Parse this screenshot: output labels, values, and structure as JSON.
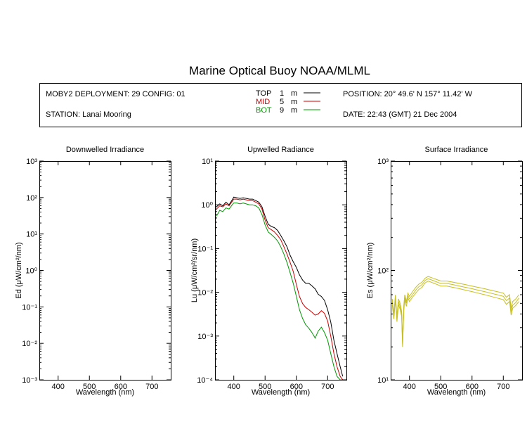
{
  "title": "Marine Optical Buoy NOAA/MLML",
  "info": {
    "deployment": "MOBY2 DEPLOYMENT: 29 CONFIG: 01",
    "station": "STATION: Lanai Mooring",
    "position": "POSITION: 20° 49.6' N   157° 11.42' W",
    "date": "DATE: 22:43 (GMT) 21 Dec 2004",
    "depths": [
      {
        "label": "TOP",
        "value": "1",
        "unit": "m",
        "color": "#000000"
      },
      {
        "label": "MID",
        "value": "5",
        "unit": "m",
        "color": "#cc0000"
      },
      {
        "label": "BOT",
        "value": "9",
        "unit": "m",
        "color": "#009900"
      }
    ]
  },
  "chart_data": [
    {
      "type": "line",
      "title": "Downwelled Irradiance",
      "xlabel": "Wavelength (nm)",
      "ylabel": "Ed  (μW/cm²/nm)",
      "yscale": "log",
      "xlim": [
        340,
        760
      ],
      "ylim": [
        0.001,
        1000
      ],
      "xticks": [
        "400",
        "500",
        "600",
        "700"
      ],
      "yticks": [
        "10⁻³",
        "10⁻²",
        "10⁻¹",
        "10⁰",
        "10¹",
        "10²",
        "10³"
      ],
      "series": []
    },
    {
      "type": "line",
      "title": "Upwelled Radiance",
      "xlabel": "Wavelength (nm)",
      "ylabel": "Lu  (μW/cm²/sr/nm)",
      "yscale": "log",
      "xlim": [
        340,
        760
      ],
      "ylim": [
        0.0001,
        10
      ],
      "xticks": [
        "400",
        "500",
        "600",
        "700"
      ],
      "yticks": [
        "10⁻⁴",
        "10⁻³",
        "10⁻²",
        "10⁻¹",
        "10⁰",
        "10¹"
      ],
      "series": [
        {
          "name": "TOP",
          "color": "#000000",
          "x": [
            345,
            355,
            365,
            375,
            385,
            395,
            400,
            410,
            420,
            430,
            440,
            450,
            460,
            470,
            480,
            490,
            500,
            510,
            520,
            530,
            540,
            550,
            560,
            570,
            580,
            590,
            600,
            610,
            620,
            630,
            640,
            650,
            660,
            670,
            680,
            690,
            700,
            710,
            720,
            730,
            740,
            748
          ],
          "y": [
            0.9,
            1.05,
            0.95,
            1.15,
            1.0,
            1.3,
            1.5,
            1.45,
            1.4,
            1.45,
            1.4,
            1.35,
            1.35,
            1.25,
            1.15,
            0.9,
            0.55,
            0.36,
            0.32,
            0.3,
            0.26,
            0.2,
            0.15,
            0.11,
            0.07,
            0.05,
            0.037,
            0.025,
            0.019,
            0.016,
            0.016,
            0.014,
            0.012,
            0.009,
            0.008,
            0.0065,
            0.004,
            0.0021,
            0.0008,
            0.0004,
            0.0002,
            0.00012
          ]
        },
        {
          "name": "MID",
          "color": "#cc0000",
          "x": [
            345,
            355,
            365,
            375,
            385,
            395,
            400,
            410,
            420,
            430,
            440,
            450,
            460,
            470,
            480,
            490,
            500,
            510,
            520,
            530,
            540,
            550,
            560,
            570,
            580,
            590,
            600,
            610,
            620,
            630,
            640,
            650,
            660,
            670,
            680,
            690,
            700,
            710,
            720,
            730,
            740,
            748
          ],
          "y": [
            0.8,
            0.95,
            0.9,
            1.05,
            0.95,
            1.2,
            1.35,
            1.35,
            1.3,
            1.35,
            1.3,
            1.25,
            1.25,
            1.15,
            1.05,
            0.8,
            0.45,
            0.3,
            0.27,
            0.24,
            0.2,
            0.16,
            0.11,
            0.075,
            0.048,
            0.03,
            0.015,
            0.008,
            0.0055,
            0.0045,
            0.004,
            0.0035,
            0.003,
            0.0032,
            0.0038,
            0.0033,
            0.0022,
            0.001,
            0.0004,
            0.0002,
            0.00012,
            0.0001
          ]
        },
        {
          "name": "BOT",
          "color": "#009900",
          "x": [
            345,
            355,
            365,
            375,
            385,
            395,
            400,
            410,
            420,
            430,
            440,
            450,
            460,
            470,
            480,
            490,
            500,
            510,
            520,
            530,
            540,
            550,
            560,
            570,
            580,
            590,
            600,
            610,
            620,
            630,
            640,
            650,
            660,
            670,
            680,
            690,
            700,
            710,
            720,
            730,
            740,
            748
          ],
          "y": [
            0.55,
            0.75,
            0.7,
            0.85,
            0.8,
            1.0,
            1.1,
            1.1,
            1.05,
            1.1,
            1.05,
            1.0,
            1.0,
            0.95,
            0.85,
            0.6,
            0.35,
            0.24,
            0.21,
            0.18,
            0.15,
            0.11,
            0.075,
            0.048,
            0.028,
            0.016,
            0.008,
            0.004,
            0.0025,
            0.0018,
            0.0015,
            0.0012,
            0.0009,
            0.0013,
            0.0016,
            0.0012,
            0.0008,
            0.0004,
            0.0002,
            0.00012,
            0.0001,
            0.0001
          ]
        }
      ]
    },
    {
      "type": "line",
      "title": "Surface Irradiance",
      "xlabel": "Wavelength (nm)",
      "ylabel": "Es  (μW/cm²/nm)",
      "yscale": "log",
      "xlim": [
        340,
        760
      ],
      "ylim": [
        10,
        1000
      ],
      "xticks": [
        "400",
        "500",
        "600",
        "700"
      ],
      "yticks": [
        "10¹",
        "10²",
        "10³"
      ],
      "series": [
        {
          "name": "",
          "color": "#c8c020",
          "x": [
            345,
            350,
            355,
            360,
            365,
            370,
            375,
            378,
            382,
            385,
            390,
            395,
            400,
            410,
            420,
            430,
            440,
            450,
            460,
            470,
            480,
            490,
            500,
            520,
            540,
            560,
            580,
            600,
            620,
            640,
            660,
            680,
            700,
            710,
            720,
            725,
            730,
            740,
            750
          ],
          "y": [
            55,
            40,
            60,
            38,
            55,
            50,
            42,
            22,
            48,
            60,
            52,
            62,
            58,
            64,
            70,
            75,
            78,
            85,
            88,
            86,
            84,
            82,
            80,
            80,
            78,
            76,
            74,
            72,
            70,
            68,
            66,
            64,
            62,
            57,
            60,
            45,
            52,
            55,
            60
          ]
        },
        {
          "name": "",
          "color": "#c8c020",
          "x": [
            345,
            350,
            355,
            360,
            365,
            370,
            375,
            378,
            382,
            385,
            390,
            395,
            400,
            410,
            420,
            430,
            440,
            450,
            460,
            470,
            480,
            490,
            500,
            520,
            540,
            560,
            580,
            600,
            620,
            640,
            660,
            680,
            700,
            710,
            720,
            725,
            730,
            740,
            750
          ],
          "y": [
            52,
            38,
            57,
            36,
            52,
            47,
            40,
            21,
            46,
            57,
            50,
            59,
            55,
            60,
            66,
            71,
            74,
            81,
            84,
            82,
            80,
            78,
            76,
            76,
            74,
            72,
            70,
            68,
            66,
            64,
            62,
            60,
            58,
            53,
            56,
            42,
            48,
            51,
            56
          ]
        },
        {
          "name": "",
          "color": "#c8c020",
          "x": [
            345,
            350,
            355,
            360,
            365,
            370,
            375,
            378,
            382,
            385,
            390,
            395,
            400,
            410,
            420,
            430,
            440,
            450,
            460,
            470,
            480,
            490,
            500,
            520,
            540,
            560,
            580,
            600,
            620,
            640,
            660,
            680,
            700,
            710,
            720,
            725,
            730,
            740,
            750
          ],
          "y": [
            49,
            36,
            54,
            34,
            49,
            44,
            38,
            20,
            43,
            54,
            47,
            56,
            52,
            57,
            62,
            67,
            70,
            77,
            80,
            78,
            76,
            74,
            72,
            72,
            70,
            68,
            66,
            64,
            62,
            60,
            58,
            56,
            54,
            49,
            52,
            39,
            45,
            48,
            52
          ]
        }
      ]
    }
  ]
}
